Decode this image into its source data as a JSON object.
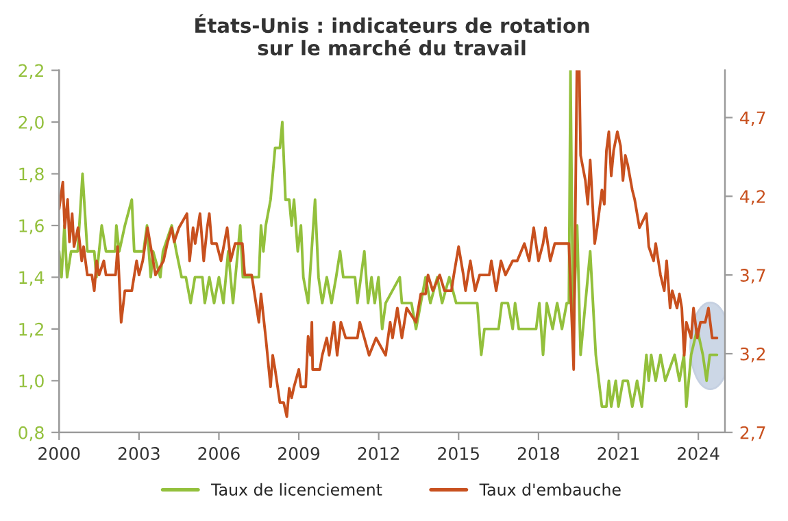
{
  "chart_data": {
    "type": "line",
    "title": "États-Unis : indicateurs de rotation\nsur le marché du travail",
    "xlim": [
      2000,
      2025
    ],
    "xticks": [
      2000,
      2003,
      2006,
      2009,
      2012,
      2015,
      2018,
      2021,
      2024
    ],
    "ylim": [
      0.8,
      2.2
    ],
    "yticks": [
      {
        "value": 0.8,
        "label": "0,8"
      },
      {
        "value": 1.0,
        "label": "1,0"
      },
      {
        "value": 1.2,
        "label": "1,2"
      },
      {
        "value": 1.4,
        "label": "1,4"
      },
      {
        "value": 1.6,
        "label": "1,6"
      },
      {
        "value": 1.8,
        "label": "1,8"
      },
      {
        "value": 2.0,
        "label": "2,0"
      },
      {
        "value": 2.2,
        "label": "2,2"
      }
    ],
    "y2lim": [
      2.7,
      5.0
    ],
    "y2ticks": [
      {
        "value": 2.7,
        "label": "2,7"
      },
      {
        "value": 3.2,
        "label": "3,2"
      },
      {
        "value": 3.7,
        "label": "3,7"
      },
      {
        "value": 4.2,
        "label": "4,2"
      },
      {
        "value": 4.7,
        "label": "4,7"
      }
    ],
    "grid": false,
    "legend": "bottom",
    "marker": "none",
    "line_style": "solid",
    "series": [
      {
        "name": "Taux de licenciement",
        "color": "#93c03c",
        "axis": "y",
        "x": [
          2000.0,
          2000.09,
          2000.2,
          2000.3,
          2000.45,
          2000.7,
          2000.88,
          2001.06,
          2001.32,
          2001.4,
          2001.6,
          2001.76,
          2002.1,
          2002.15,
          2002.26,
          2002.47,
          2002.73,
          2002.82,
          2003.17,
          2003.3,
          2003.44,
          2003.53,
          2003.8,
          2003.9,
          2004.23,
          2004.4,
          2004.6,
          2004.76,
          2004.94,
          2005.1,
          2005.38,
          2005.47,
          2005.64,
          2005.82,
          2006.0,
          2006.17,
          2006.35,
          2006.53,
          2006.8,
          2006.9,
          2007.5,
          2007.58,
          2007.67,
          2007.76,
          2007.94,
          2008.11,
          2008.29,
          2008.38,
          2008.5,
          2008.64,
          2008.73,
          2008.82,
          2008.96,
          2009.08,
          2009.17,
          2009.35,
          2009.61,
          2009.74,
          2009.88,
          2010.05,
          2010.23,
          2010.4,
          2010.55,
          2010.67,
          2011.11,
          2011.2,
          2011.46,
          2011.6,
          2011.73,
          2011.85,
          2011.99,
          2012.13,
          2012.26,
          2012.79,
          2012.87,
          2013.23,
          2013.4,
          2013.58,
          2013.76,
          2013.94,
          2014.2,
          2014.38,
          2014.65,
          2014.91,
          2015.35,
          2015.7,
          2015.85,
          2015.97,
          2016.5,
          2016.62,
          2016.85,
          2017.03,
          2017.12,
          2017.26,
          2017.91,
          2018.03,
          2018.17,
          2018.31,
          2018.53,
          2018.7,
          2018.88,
          2019.06,
          2019.14,
          2019.2,
          2019.3,
          2019.45,
          2019.58,
          2019.94,
          2020.15,
          2020.38,
          2020.55,
          2020.64,
          2020.73,
          2020.9,
          2021.0,
          2021.17,
          2021.35,
          2021.52,
          2021.7,
          2021.88,
          2022.05,
          2022.14,
          2022.23,
          2022.4,
          2022.58,
          2022.76,
          2023.11,
          2023.29,
          2023.46,
          2023.55,
          2023.73,
          2023.96,
          2024.17,
          2024.31,
          2024.43,
          2024.7
        ],
        "values": [
          1.5,
          1.4,
          1.6,
          1.4,
          1.5,
          1.5,
          1.8,
          1.5,
          1.5,
          1.4,
          1.6,
          1.5,
          1.5,
          1.6,
          1.5,
          1.6,
          1.7,
          1.5,
          1.5,
          1.6,
          1.4,
          1.5,
          1.4,
          1.5,
          1.6,
          1.5,
          1.4,
          1.4,
          1.3,
          1.4,
          1.4,
          1.3,
          1.4,
          1.3,
          1.4,
          1.3,
          1.5,
          1.3,
          1.6,
          1.4,
          1.4,
          1.6,
          1.5,
          1.6,
          1.7,
          1.9,
          1.9,
          2.0,
          1.7,
          1.7,
          1.6,
          1.7,
          1.5,
          1.6,
          1.4,
          1.3,
          1.7,
          1.4,
          1.3,
          1.4,
          1.3,
          1.4,
          1.5,
          1.4,
          1.4,
          1.3,
          1.5,
          1.3,
          1.4,
          1.3,
          1.4,
          1.2,
          1.3,
          1.4,
          1.3,
          1.3,
          1.2,
          1.3,
          1.4,
          1.3,
          1.4,
          1.3,
          1.4,
          1.3,
          1.3,
          1.3,
          1.1,
          1.2,
          1.2,
          1.3,
          1.3,
          1.2,
          1.3,
          1.2,
          1.2,
          1.3,
          1.1,
          1.3,
          1.2,
          1.3,
          1.2,
          1.3,
          1.3,
          2.2,
          1.2,
          1.6,
          1.1,
          1.5,
          1.1,
          0.9,
          0.9,
          1.0,
          0.9,
          1.0,
          0.9,
          1.0,
          1.0,
          0.9,
          1.0,
          0.9,
          1.1,
          1.0,
          1.1,
          1.0,
          1.1,
          1.0,
          1.1,
          1.0,
          1.1,
          0.9,
          1.1,
          1.2,
          1.1,
          1.0,
          1.1,
          1.1
        ]
      },
      {
        "name": "Taux d'embauche",
        "color": "#c8501e",
        "axis": "y2",
        "x": [
          2000.0,
          2000.14,
          2000.21,
          2000.32,
          2000.39,
          2000.49,
          2000.56,
          2000.71,
          2000.85,
          2000.92,
          2001.06,
          2001.23,
          2001.32,
          2001.41,
          2001.5,
          2001.68,
          2001.76,
          2002.12,
          2002.2,
          2002.33,
          2002.47,
          2002.73,
          2002.91,
          2003.0,
          2003.14,
          2003.32,
          2003.53,
          2003.62,
          2003.92,
          2004.06,
          2004.23,
          2004.32,
          2004.5,
          2004.8,
          2004.9,
          2005.03,
          2005.11,
          2005.29,
          2005.43,
          2005.56,
          2005.64,
          2005.73,
          2005.91,
          2006.08,
          2006.31,
          2006.44,
          2006.61,
          2006.88,
          2006.97,
          2007.23,
          2007.32,
          2007.5,
          2007.58,
          2007.76,
          2007.94,
          2008.02,
          2008.11,
          2008.29,
          2008.43,
          2008.55,
          2008.64,
          2008.73,
          2008.82,
          2009.0,
          2009.08,
          2009.26,
          2009.35,
          2009.44,
          2009.49,
          2009.52,
          2009.79,
          2009.88,
          2010.05,
          2010.14,
          2010.32,
          2010.44,
          2010.58,
          2010.76,
          2011.2,
          2011.29,
          2011.46,
          2011.64,
          2011.9,
          2012.26,
          2012.43,
          2012.52,
          2012.7,
          2012.87,
          2013.05,
          2013.4,
          2013.58,
          2013.76,
          2013.85,
          2014.03,
          2014.29,
          2014.47,
          2014.73,
          2014.82,
          2015.0,
          2015.18,
          2015.26,
          2015.44,
          2015.62,
          2015.79,
          2016.15,
          2016.23,
          2016.41,
          2016.59,
          2016.76,
          2017.03,
          2017.2,
          2017.47,
          2017.65,
          2017.82,
          2018.0,
          2018.17,
          2018.26,
          2018.44,
          2018.61,
          2019.14,
          2019.32,
          2019.44,
          2019.53,
          2019.58,
          2019.76,
          2019.85,
          2019.94,
          2020.11,
          2020.2,
          2020.38,
          2020.47,
          2020.55,
          2020.64,
          2020.73,
          2020.82,
          2020.96,
          2021.08,
          2021.17,
          2021.26,
          2021.35,
          2021.52,
          2021.61,
          2021.79,
          2022.05,
          2022.14,
          2022.32,
          2022.4,
          2022.58,
          2022.72,
          2022.81,
          2022.94,
          2023.02,
          2023.2,
          2023.29,
          2023.38,
          2023.47,
          2023.55,
          2023.73,
          2023.82,
          2023.96,
          2024.08,
          2024.26,
          2024.38,
          2024.52,
          2024.7
        ],
        "values": [
          4.12,
          4.29,
          4.0,
          4.18,
          3.91,
          4.09,
          3.88,
          4.0,
          3.79,
          3.88,
          3.7,
          3.7,
          3.6,
          3.79,
          3.7,
          3.79,
          3.7,
          3.7,
          3.88,
          3.4,
          3.6,
          3.6,
          3.79,
          3.7,
          3.79,
          4.0,
          3.79,
          3.7,
          3.79,
          3.9,
          4.0,
          3.91,
          4.0,
          4.09,
          3.79,
          4.0,
          3.9,
          4.09,
          3.79,
          4.0,
          4.09,
          3.9,
          3.9,
          3.79,
          4.0,
          3.79,
          3.9,
          3.9,
          3.7,
          3.7,
          3.6,
          3.4,
          3.58,
          3.3,
          2.99,
          3.19,
          3.1,
          2.89,
          2.89,
          2.8,
          2.98,
          2.92,
          2.99,
          3.1,
          2.99,
          2.99,
          3.31,
          3.19,
          3.4,
          3.1,
          3.1,
          3.19,
          3.3,
          3.19,
          3.4,
          3.19,
          3.4,
          3.3,
          3.3,
          3.4,
          3.3,
          3.19,
          3.3,
          3.19,
          3.4,
          3.3,
          3.49,
          3.3,
          3.49,
          3.4,
          3.58,
          3.58,
          3.7,
          3.6,
          3.7,
          3.6,
          3.6,
          3.7,
          3.88,
          3.7,
          3.6,
          3.79,
          3.6,
          3.7,
          3.7,
          3.79,
          3.6,
          3.79,
          3.7,
          3.79,
          3.79,
          3.9,
          3.79,
          4.0,
          3.79,
          3.9,
          4.0,
          3.79,
          3.9,
          3.9,
          3.1,
          5.0,
          5.0,
          4.46,
          4.3,
          4.15,
          4.43,
          3.9,
          4.0,
          4.24,
          4.15,
          4.49,
          4.61,
          4.33,
          4.49,
          4.61,
          4.52,
          4.3,
          4.46,
          4.4,
          4.24,
          4.18,
          4.0,
          4.09,
          3.88,
          3.79,
          3.9,
          3.7,
          3.6,
          3.79,
          3.49,
          3.6,
          3.49,
          3.58,
          3.49,
          3.19,
          3.4,
          3.3,
          3.49,
          3.3,
          3.4,
          3.4,
          3.49,
          3.3,
          3.3
        ]
      }
    ]
  }
}
